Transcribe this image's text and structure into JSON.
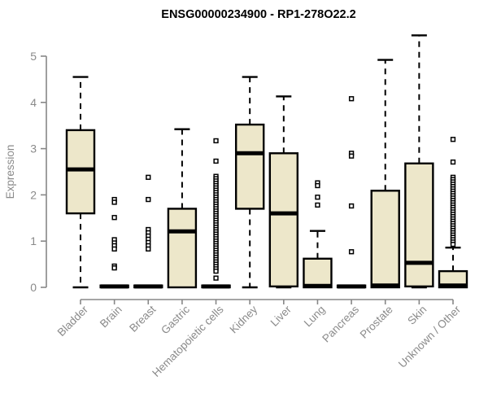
{
  "colors": {
    "box_fill": "#EDE7CA",
    "box_stroke": "#000000",
    "whisker": "#000000",
    "outlier_stroke": "#000000",
    "outlier_fill": "#FFFFFF",
    "axis": "#878787",
    "tick_text": "#8A8A8A",
    "title_text": "#000000",
    "background": "#FFFFFF"
  },
  "chart_data": {
    "type": "boxplot",
    "title": "ENSG00000234900 - RP1-278O22.2",
    "xlabel": "",
    "ylabel": "Expression",
    "ylim": [
      0,
      5
    ],
    "yticks": [
      0,
      1,
      2,
      3,
      4,
      5
    ],
    "grid": false,
    "legend": "none",
    "categories": [
      "Bladder",
      "Brain",
      "Breast",
      "Gastric",
      "Hematopoietic cells",
      "Kidney",
      "Liver",
      "Lung",
      "Pancreas",
      "Prostate",
      "Skin",
      "Unknown / Other"
    ],
    "series": [
      {
        "name": "Bladder",
        "whisker_low": 0,
        "q1": 1.6,
        "median": 2.55,
        "q3": 3.4,
        "whisker_high": 4.55,
        "outliers": []
      },
      {
        "name": "Brain",
        "whisker_low": 0,
        "q1": 0,
        "median": 0.02,
        "q3": 0.04,
        "whisker_high": 0.04,
        "outliers": [
          1.9,
          1.84,
          1.51,
          1.03,
          0.96,
          0.9,
          0.83,
          0.46,
          0.42
        ]
      },
      {
        "name": "Breast",
        "whisker_low": 0,
        "q1": 0,
        "median": 0.02,
        "q3": 0.04,
        "whisker_high": 0.04,
        "outliers": [
          2.38,
          1.9,
          1.25,
          1.18,
          1.11,
          1.04,
          0.97,
          0.9,
          0.83
        ]
      },
      {
        "name": "Gastric",
        "whisker_low": 0,
        "q1": 0,
        "median": 1.21,
        "q3": 1.7,
        "whisker_high": 3.42,
        "outliers": []
      },
      {
        "name": "Hematopoietic cells",
        "whisker_low": 0,
        "q1": 0,
        "median": 0.02,
        "q3": 0.04,
        "whisker_high": 0.04,
        "outliers": [
          3.17,
          2.73,
          2.4,
          2.35,
          2.3,
          2.25,
          2.2,
          2.15,
          2.1,
          2.05,
          2.0,
          1.95,
          1.9,
          1.85,
          1.8,
          1.75,
          1.7,
          1.65,
          1.6,
          1.55,
          1.5,
          1.45,
          1.4,
          1.35,
          1.3,
          1.25,
          1.2,
          1.15,
          1.1,
          1.05,
          1.0,
          0.95,
          0.9,
          0.85,
          0.8,
          0.75,
          0.7,
          0.65,
          0.6,
          0.55,
          0.5,
          0.45,
          0.4,
          0.35,
          0.2
        ]
      },
      {
        "name": "Kidney",
        "whisker_low": 0,
        "q1": 1.7,
        "median": 2.9,
        "q3": 3.52,
        "whisker_high": 4.55,
        "outliers": []
      },
      {
        "name": "Liver",
        "whisker_low": 0,
        "q1": 0.02,
        "median": 1.6,
        "q3": 2.9,
        "whisker_high": 4.13,
        "outliers": []
      },
      {
        "name": "Lung",
        "whisker_low": 0,
        "q1": 0,
        "median": 0.03,
        "q3": 0.62,
        "whisker_high": 1.22,
        "outliers": [
          2.26,
          2.2,
          1.95,
          1.78
        ]
      },
      {
        "name": "Pancreas",
        "whisker_low": 0,
        "q1": 0,
        "median": 0.02,
        "q3": 0.04,
        "whisker_high": 0.04,
        "outliers": [
          4.08,
          2.9,
          2.84,
          1.76,
          0.77
        ]
      },
      {
        "name": "Prostate",
        "whisker_low": 0,
        "q1": 0,
        "median": 0.04,
        "q3": 2.09,
        "whisker_high": 4.92,
        "outliers": []
      },
      {
        "name": "Skin",
        "whisker_low": 0,
        "q1": 0.02,
        "median": 0.53,
        "q3": 2.68,
        "whisker_high": 5.45,
        "outliers": []
      },
      {
        "name": "Unknown / Other",
        "whisker_low": 0,
        "q1": 0,
        "median": 0.04,
        "q3": 0.35,
        "whisker_high": 0.86,
        "outliers": [
          3.2,
          2.71,
          2.38,
          2.33,
          2.28,
          2.23,
          2.18,
          2.13,
          2.08,
          2.03,
          1.98,
          1.93,
          1.88,
          1.83,
          1.78,
          1.73,
          1.68,
          1.63,
          1.58,
          1.53,
          1.48,
          1.43,
          1.38,
          1.33,
          1.28,
          1.23,
          1.18,
          1.13,
          1.08,
          1.03,
          0.98,
          0.93
        ]
      }
    ]
  }
}
